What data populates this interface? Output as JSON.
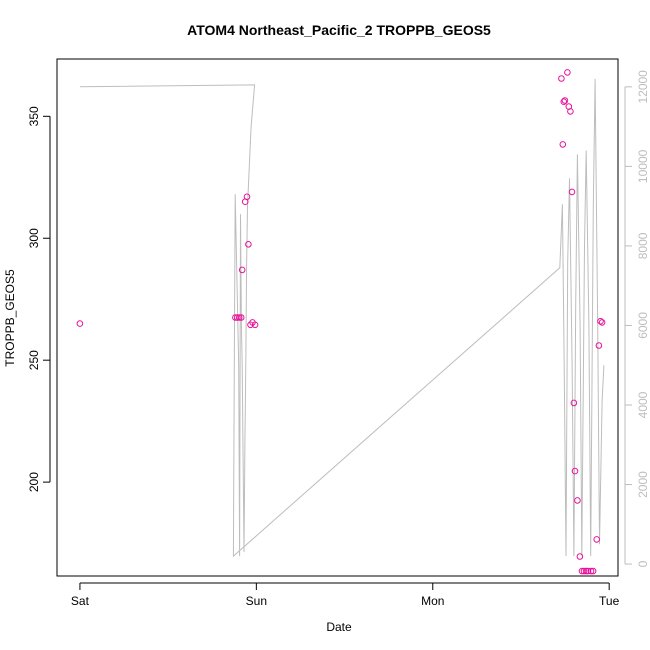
{
  "chart_data": {
    "type": "scatter",
    "title": "ATOM4 Northeast_Pacific_2 TROPPB_GEOS5",
    "xlabel": "Date",
    "ylabel": "TROPPB_GEOS5",
    "x_ticks": [
      {
        "x": 0,
        "label": "Sat"
      },
      {
        "x": 1,
        "label": "Sun"
      },
      {
        "x": 2,
        "label": "Mon"
      },
      {
        "x": 3,
        "label": "Tue"
      }
    ],
    "xlim": [
      -0.13,
      3.05
    ],
    "ylim": [
      161.5,
      373.5
    ],
    "y_ticks": [
      200,
      250,
      300,
      350
    ],
    "y2lim": [
      -300,
      12700
    ],
    "y2_ticks": [
      0,
      2000,
      4000,
      6000,
      8000,
      10000,
      12000
    ],
    "colors": {
      "points": "#e8139a",
      "altitude_line": "#bdbdbd"
    },
    "series": [
      {
        "values_x": [
          0.0,
          0.881,
          0.892,
          0.903,
          0.914,
          0.92,
          0.937,
          0.947,
          0.955,
          0.967,
          0.978,
          0.993,
          2.729,
          2.737,
          2.743,
          2.749,
          2.763,
          2.771,
          2.78,
          2.789,
          2.8,
          2.806,
          2.82,
          2.834,
          2.846,
          2.857,
          2.869,
          2.88,
          2.897,
          2.909,
          2.929,
          2.942,
          2.951,
          2.96
        ],
        "values_y": [
          265,
          267.5,
          267.5,
          267.5,
          267.5,
          287,
          315,
          317,
          297.5,
          264.5,
          265.5,
          264.5,
          365.5,
          338.5,
          356,
          356.5,
          368,
          354,
          352,
          319,
          232.5,
          204.5,
          192.5,
          169.5,
          163.5,
          163.5,
          163.5,
          163.5,
          163.5,
          163.5,
          176.5,
          256,
          266,
          265.5
        ]
      },
      {
        "values_x": [
          0.0,
          0.99,
          0.97,
          0.96,
          0.95,
          0.945,
          0.94,
          0.935,
          0.93,
          0.92,
          0.915,
          0.91,
          0.905,
          0.9,
          0.88,
          0.875,
          0.87,
          2.72,
          2.735,
          2.745,
          2.755,
          2.765,
          2.775,
          2.79,
          2.8,
          2.81,
          2.82,
          2.835,
          2.845,
          2.86,
          2.87,
          2.885,
          2.895,
          2.91,
          2.92,
          2.935,
          2.945,
          2.96,
          2.97
        ],
        "values_y": [
          12000,
          12050,
          11000,
          10000,
          9000,
          7500,
          5000,
          3000,
          300,
          5000,
          6000,
          8800,
          200,
          5000,
          9300,
          5000,
          200,
          7450,
          9050,
          5000,
          200,
          7600,
          9700,
          5000,
          200,
          6500,
          10300,
          6000,
          200,
          8000,
          10400,
          6000,
          200,
          9000,
          12200,
          6000,
          500,
          4100,
          5000
        ]
      }
    ]
  }
}
